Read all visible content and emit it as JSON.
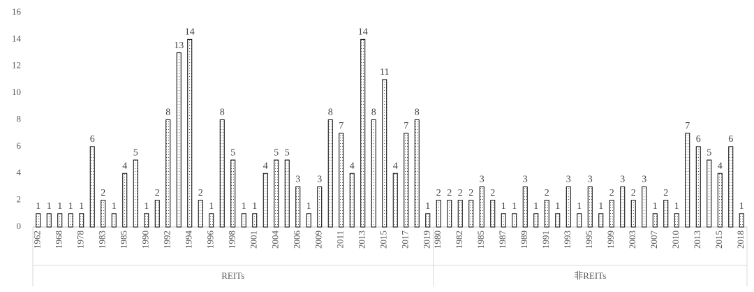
{
  "chart_data": {
    "type": "bar",
    "ylim": [
      0,
      16
    ],
    "yticks": [
      0,
      2,
      4,
      6,
      8,
      10,
      12,
      14,
      16
    ],
    "groups": [
      {
        "label": "REITs",
        "categories": [
          "1962",
          null,
          "1968",
          null,
          "1978",
          null,
          "1983",
          null,
          "1985",
          null,
          "1990",
          null,
          "1992",
          null,
          "1994",
          null,
          "1996",
          null,
          "1998",
          null,
          "2001",
          null,
          "2004",
          null,
          "2006",
          null,
          "2009",
          null,
          "2011",
          null,
          "2013",
          null,
          "2015",
          null,
          "2017",
          null,
          "2019"
        ],
        "values": [
          1,
          1,
          1,
          1,
          1,
          6,
          2,
          1,
          4,
          5,
          1,
          2,
          8,
          13,
          14,
          2,
          1,
          8,
          5,
          1,
          1,
          4,
          5,
          5,
          3,
          1,
          3,
          8,
          7,
          4,
          14,
          8,
          11,
          4,
          7,
          8,
          1
        ]
      },
      {
        "label": "非REITs",
        "categories": [
          "1980",
          null,
          "1982",
          null,
          "1985",
          null,
          "1987",
          null,
          "1989",
          null,
          "1991",
          null,
          "1993",
          null,
          "1995",
          null,
          "1999",
          null,
          "2003",
          null,
          "2007",
          null,
          "2010",
          null,
          "2013",
          null,
          "2015",
          null,
          "2018"
        ],
        "values": [
          2,
          2,
          2,
          2,
          3,
          2,
          1,
          1,
          3,
          1,
          2,
          1,
          3,
          1,
          3,
          1,
          2,
          3,
          2,
          3,
          1,
          2,
          1,
          7,
          6,
          5,
          4,
          6,
          1
        ]
      }
    ]
  }
}
